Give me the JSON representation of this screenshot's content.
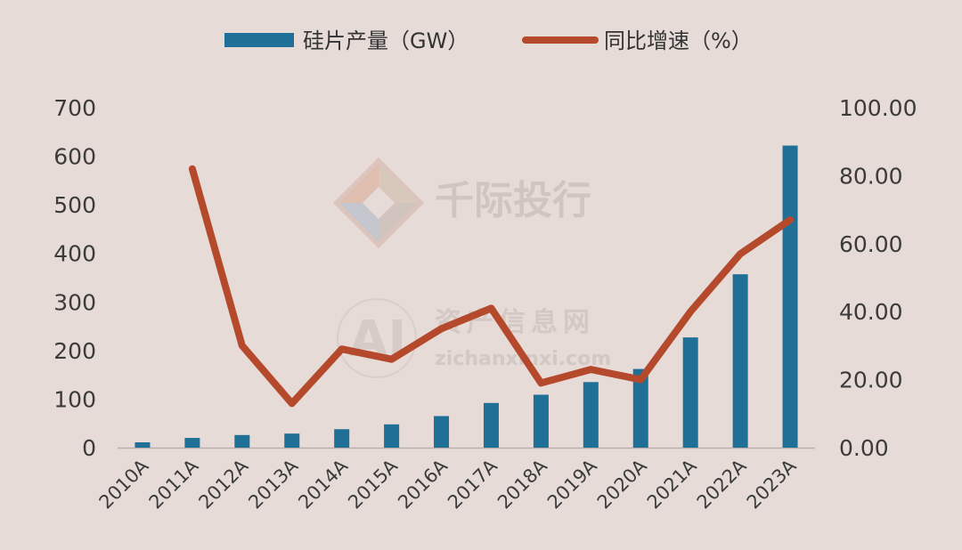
{
  "chart_data": {
    "type": "bar",
    "categories": [
      "2010A",
      "2011A",
      "2012A",
      "2013A",
      "2014A",
      "2015A",
      "2016A",
      "2017A",
      "2018A",
      "2019A",
      "2020A",
      "2021A",
      "2022A",
      "2023A"
    ],
    "series": [
      {
        "name": "硅片产量（GW）",
        "type": "bar",
        "axis": "left",
        "color": "#1f6f96",
        "values": [
          11,
          20,
          26,
          29,
          38,
          48,
          65,
          92,
          109,
          135,
          162,
          227,
          357,
          622
        ]
      },
      {
        "name": "同比增速（%）",
        "type": "line",
        "axis": "right",
        "color": "#b5492c",
        "values": [
          null,
          82,
          30,
          13,
          29,
          26,
          35,
          41,
          19,
          23,
          20,
          40,
          57,
          67
        ]
      }
    ],
    "y_left": {
      "min": 0,
      "max": 700,
      "ticks": [
        "0",
        "100",
        "200",
        "300",
        "400",
        "500",
        "600",
        "700"
      ]
    },
    "y_right": {
      "min": 0,
      "max": 100,
      "ticks": [
        "0.00",
        "20.00",
        "40.00",
        "60.00",
        "80.00",
        "100.00"
      ]
    },
    "legend_position": "top",
    "grid": false
  },
  "watermarks": {
    "brand_cn": "千际投行",
    "site_cn": "资产信息网",
    "site_url": "zichanxinxi.com",
    "logo_text": "AI"
  }
}
